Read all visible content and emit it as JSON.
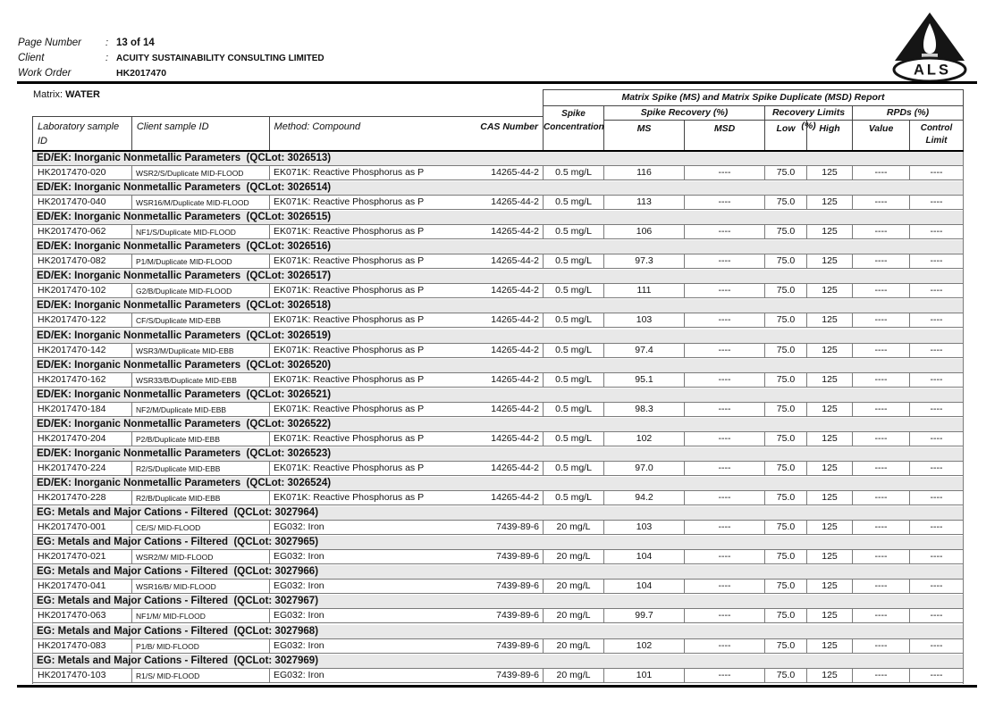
{
  "page_header": {
    "rows": [
      {
        "label": "Page Number",
        "separator": ":",
        "value": "13 of 14"
      },
      {
        "label": "Client",
        "separator": ":",
        "value": "ACUITY SUSTAINABILITY CONSULTING LIMITED"
      },
      {
        "label": "Work Order",
        "separator": "",
        "value": "HK2017470"
      }
    ],
    "logo": "ALS"
  },
  "matrix": {
    "label": "Matrix:",
    "value": "WATER"
  },
  "table": {
    "report_title": "Matrix Spike (MS) and Matrix Spike Duplicate (MSD) Report",
    "headers": {
      "laboratory_sample_id": "Laboratory sample ID",
      "client_sample_id": "Client sample ID",
      "method_compound": "Method: Compound",
      "cas_number": "CAS Number",
      "spike_line1": "Spike",
      "spike_line2": "Concentration",
      "spike_recovery": "Spike Recovery (%)",
      "ms": "MS",
      "msd": "MSD",
      "recovery_limits": "Recovery Limits (%)",
      "low": "Low",
      "high": "High",
      "rpds": "RPDs (%)",
      "value": "Value",
      "control_limit": "Control Limit"
    },
    "groups": [
      {
        "header": "ED/EK: Inorganic Nonmetallic Parameters  (QCLot: 3026513)",
        "row": {
          "lab_id": "HK2017470-020",
          "client_id": "WSR2/S/Duplicate MID-FLOOD",
          "method": "EK071K: Reactive Phosphorus as P",
          "cas": "14265-44-2",
          "spike_conc": "0.5 mg/L",
          "ms": "116",
          "msd": "----",
          "low": "75.0",
          "high": "125",
          "value": "----",
          "control_limit": "----"
        }
      },
      {
        "header": "ED/EK: Inorganic Nonmetallic Parameters  (QCLot: 3026514)",
        "row": {
          "lab_id": "HK2017470-040",
          "client_id": "WSR16/M/Duplicate MID-FLOOD",
          "method": "EK071K: Reactive Phosphorus as P",
          "cas": "14265-44-2",
          "spike_conc": "0.5 mg/L",
          "ms": "113",
          "msd": "----",
          "low": "75.0",
          "high": "125",
          "value": "----",
          "control_limit": "----"
        }
      },
      {
        "header": "ED/EK: Inorganic Nonmetallic Parameters  (QCLot: 3026515)",
        "row": {
          "lab_id": "HK2017470-062",
          "client_id": "NF1/S/Duplicate MID-FLOOD",
          "method": "EK071K: Reactive Phosphorus as P",
          "cas": "14265-44-2",
          "spike_conc": "0.5 mg/L",
          "ms": "106",
          "msd": "----",
          "low": "75.0",
          "high": "125",
          "value": "----",
          "control_limit": "----"
        }
      },
      {
        "header": "ED/EK: Inorganic Nonmetallic Parameters  (QCLot: 3026516)",
        "row": {
          "lab_id": "HK2017470-082",
          "client_id": "P1/M/Duplicate MID-FLOOD",
          "method": "EK071K: Reactive Phosphorus as P",
          "cas": "14265-44-2",
          "spike_conc": "0.5 mg/L",
          "ms": "97.3",
          "msd": "----",
          "low": "75.0",
          "high": "125",
          "value": "----",
          "control_limit": "----"
        }
      },
      {
        "header": "ED/EK: Inorganic Nonmetallic Parameters  (QCLot: 3026517)",
        "row": {
          "lab_id": "HK2017470-102",
          "client_id": "G2/B/Duplicate MID-FLOOD",
          "method": "EK071K: Reactive Phosphorus as P",
          "cas": "14265-44-2",
          "spike_conc": "0.5 mg/L",
          "ms": "111",
          "msd": "----",
          "low": "75.0",
          "high": "125",
          "value": "----",
          "control_limit": "----"
        }
      },
      {
        "header": "ED/EK: Inorganic Nonmetallic Parameters  (QCLot: 3026518)",
        "row": {
          "lab_id": "HK2017470-122",
          "client_id": "CF/S/Duplicate MID-EBB",
          "method": "EK071K: Reactive Phosphorus as P",
          "cas": "14265-44-2",
          "spike_conc": "0.5 mg/L",
          "ms": "103",
          "msd": "----",
          "low": "75.0",
          "high": "125",
          "value": "----",
          "control_limit": "----"
        }
      },
      {
        "header": "ED/EK: Inorganic Nonmetallic Parameters  (QCLot: 3026519)",
        "row": {
          "lab_id": "HK2017470-142",
          "client_id": "WSR3/M/Duplicate MID-EBB",
          "method": "EK071K: Reactive Phosphorus as P",
          "cas": "14265-44-2",
          "spike_conc": "0.5 mg/L",
          "ms": "97.4",
          "msd": "----",
          "low": "75.0",
          "high": "125",
          "value": "----",
          "control_limit": "----"
        }
      },
      {
        "header": "ED/EK: Inorganic Nonmetallic Parameters  (QCLot: 3026520)",
        "row": {
          "lab_id": "HK2017470-162",
          "client_id": "WSR33/B/Duplicate MID-EBB",
          "method": "EK071K: Reactive Phosphorus as P",
          "cas": "14265-44-2",
          "spike_conc": "0.5 mg/L",
          "ms": "95.1",
          "msd": "----",
          "low": "75.0",
          "high": "125",
          "value": "----",
          "control_limit": "----"
        }
      },
      {
        "header": "ED/EK: Inorganic Nonmetallic Parameters  (QCLot: 3026521)",
        "row": {
          "lab_id": "HK2017470-184",
          "client_id": "NF2/M/Duplicate MID-EBB",
          "method": "EK071K: Reactive Phosphorus as P",
          "cas": "14265-44-2",
          "spike_conc": "0.5 mg/L",
          "ms": "98.3",
          "msd": "----",
          "low": "75.0",
          "high": "125",
          "value": "----",
          "control_limit": "----"
        }
      },
      {
        "header": "ED/EK: Inorganic Nonmetallic Parameters  (QCLot: 3026522)",
        "row": {
          "lab_id": "HK2017470-204",
          "client_id": "P2/B/Duplicate MID-EBB",
          "method": "EK071K: Reactive Phosphorus as P",
          "cas": "14265-44-2",
          "spike_conc": "0.5 mg/L",
          "ms": "102",
          "msd": "----",
          "low": "75.0",
          "high": "125",
          "value": "----",
          "control_limit": "----"
        }
      },
      {
        "header": "ED/EK: Inorganic Nonmetallic Parameters  (QCLot: 3026523)",
        "row": {
          "lab_id": "HK2017470-224",
          "client_id": "R2/S/Duplicate MID-EBB",
          "method": "EK071K: Reactive Phosphorus as P",
          "cas": "14265-44-2",
          "spike_conc": "0.5 mg/L",
          "ms": "97.0",
          "msd": "----",
          "low": "75.0",
          "high": "125",
          "value": "----",
          "control_limit": "----"
        }
      },
      {
        "header": "ED/EK: Inorganic Nonmetallic Parameters  (QCLot: 3026524)",
        "row": {
          "lab_id": "HK2017470-228",
          "client_id": "R2/B/Duplicate MID-EBB",
          "method": "EK071K: Reactive Phosphorus as P",
          "cas": "14265-44-2",
          "spike_conc": "0.5 mg/L",
          "ms": "94.2",
          "msd": "----",
          "low": "75.0",
          "high": "125",
          "value": "----",
          "control_limit": "----"
        }
      },
      {
        "header": "EG: Metals and Major Cations - Filtered  (QCLot: 3027964)",
        "row": {
          "lab_id": "HK2017470-001",
          "client_id": "CE/S/ MID-FLOOD",
          "method": "EG032: Iron",
          "cas": "7439-89-6",
          "spike_conc": "20 mg/L",
          "ms": "103",
          "msd": "----",
          "low": "75.0",
          "high": "125",
          "value": "----",
          "control_limit": "----"
        }
      },
      {
        "header": "EG: Metals and Major Cations - Filtered  (QCLot: 3027965)",
        "row": {
          "lab_id": "HK2017470-021",
          "client_id": "WSR2/M/ MID-FLOOD",
          "method": "EG032: Iron",
          "cas": "7439-89-6",
          "spike_conc": "20 mg/L",
          "ms": "104",
          "msd": "----",
          "low": "75.0",
          "high": "125",
          "value": "----",
          "control_limit": "----"
        }
      },
      {
        "header": "EG: Metals and Major Cations - Filtered  (QCLot: 3027966)",
        "row": {
          "lab_id": "HK2017470-041",
          "client_id": "WSR16/B/ MID-FLOOD",
          "method": "EG032: Iron",
          "cas": "7439-89-6",
          "spike_conc": "20 mg/L",
          "ms": "104",
          "msd": "----",
          "low": "75.0",
          "high": "125",
          "value": "----",
          "control_limit": "----"
        }
      },
      {
        "header": "EG: Metals and Major Cations - Filtered  (QCLot: 3027967)",
        "row": {
          "lab_id": "HK2017470-063",
          "client_id": "NF1/M/ MID-FLOOD",
          "method": "EG032: Iron",
          "cas": "7439-89-6",
          "spike_conc": "20 mg/L",
          "ms": "99.7",
          "msd": "----",
          "low": "75.0",
          "high": "125",
          "value": "----",
          "control_limit": "----"
        }
      },
      {
        "header": "EG: Metals and Major Cations - Filtered  (QCLot: 3027968)",
        "row": {
          "lab_id": "HK2017470-083",
          "client_id": "P1/B/ MID-FLOOD",
          "method": "EG032: Iron",
          "cas": "7439-89-6",
          "spike_conc": "20 mg/L",
          "ms": "102",
          "msd": "----",
          "low": "75.0",
          "high": "125",
          "value": "----",
          "control_limit": "----"
        }
      },
      {
        "header": "EG: Metals and Major Cations - Filtered  (QCLot: 3027969)",
        "row": {
          "lab_id": "HK2017470-103",
          "client_id": "R1/S/ MID-FLOOD",
          "method": "EG032: Iron",
          "cas": "7439-89-6",
          "spike_conc": "20 mg/L",
          "ms": "101",
          "msd": "----",
          "low": "75.0",
          "high": "125",
          "value": "----",
          "control_limit": "----"
        }
      }
    ]
  }
}
